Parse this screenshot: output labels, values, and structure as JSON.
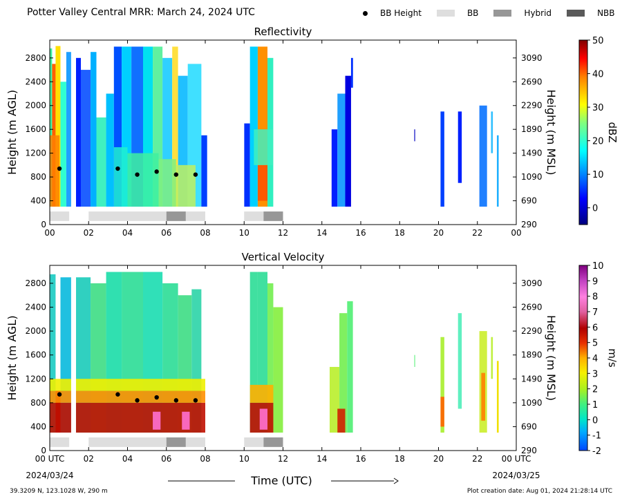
{
  "header": {
    "title": "Potter Valley Central MRR:  March 24, 2024 UTC"
  },
  "legend": [
    {
      "label": "BB Height",
      "kind": "dot",
      "color": "#000000"
    },
    {
      "label": "BB",
      "kind": "box",
      "color": "#dedede"
    },
    {
      "label": "Hybrid",
      "kind": "box",
      "color": "#979797"
    },
    {
      "label": "NBB",
      "kind": "box",
      "color": "#5a5a5a"
    }
  ],
  "footer": {
    "location": "39.3209 N, 123.1028 W, 290 m",
    "created": "Plot creation date: Aug 01, 2024 21:28:14 UTC"
  },
  "chart_data": [
    {
      "type": "heatmap",
      "title": "Reflectivity",
      "ylabel": "Height (m AGL)",
      "ylabel_right": "Height (m MSL)",
      "xlim": [
        0,
        24
      ],
      "ylim": [
        0,
        3100
      ],
      "x_ticks": [
        "00",
        "02",
        "04",
        "06",
        "08",
        "10",
        "12",
        "14",
        "16",
        "18",
        "20",
        "22",
        "00"
      ],
      "y_ticks": [
        0,
        400,
        800,
        1200,
        1600,
        2000,
        2400,
        2800
      ],
      "y_ticks_right": [
        290,
        690,
        1090,
        1490,
        1890,
        2290,
        2690,
        3090
      ],
      "colorbar": {
        "label": "dBZ",
        "min": -5,
        "max": 50,
        "ticks": [
          0,
          10,
          20,
          30,
          40,
          50
        ]
      },
      "bb_height_points": [
        [
          0.5,
          940
        ],
        [
          3.5,
          940
        ],
        [
          4.5,
          840
        ],
        [
          5.5,
          890
        ],
        [
          6.5,
          840
        ],
        [
          7.5,
          840
        ]
      ],
      "bb_type_segments": [
        {
          "start": 0.0,
          "end": 1.0,
          "type": "BB"
        },
        {
          "start": 2.0,
          "end": 6.0,
          "type": "BB"
        },
        {
          "start": 6.0,
          "end": 7.0,
          "type": "Hybrid"
        },
        {
          "start": 7.0,
          "end": 8.0,
          "type": "BB"
        },
        {
          "start": 10.0,
          "end": 11.0,
          "type": "BB"
        },
        {
          "start": 11.0,
          "end": 12.0,
          "type": "Hybrid"
        }
      ]
    },
    {
      "type": "heatmap",
      "title": "Vertical Velocity",
      "ylabel": "Height (m AGL)",
      "ylabel_right": "Height (m MSL)",
      "xlabel": "Time (UTC)",
      "xlim": [
        0,
        24
      ],
      "ylim": [
        0,
        3100
      ],
      "x_ticks": [
        "00 UTC",
        "02",
        "04",
        "06",
        "08",
        "10",
        "12",
        "14",
        "16",
        "18",
        "20",
        "22",
        "00 UTC"
      ],
      "x_date_left": "2024/03/24",
      "x_date_right": "2024/03/25",
      "y_ticks": [
        0,
        400,
        800,
        1200,
        1600,
        2000,
        2400,
        2800
      ],
      "y_ticks_right": [
        290,
        690,
        1090,
        1490,
        1890,
        2290,
        2690,
        3090
      ],
      "colorbar": {
        "label": "m/s",
        "min": -2,
        "max": 10,
        "ticks": [
          -2,
          -1,
          0,
          1,
          2,
          3,
          4,
          5,
          6,
          7,
          8,
          9,
          10
        ]
      },
      "bb_height_points": [
        [
          0.5,
          940
        ],
        [
          3.5,
          940
        ],
        [
          4.5,
          840
        ],
        [
          5.5,
          890
        ],
        [
          6.5,
          840
        ],
        [
          7.5,
          840
        ]
      ],
      "bb_type_segments": [
        {
          "start": 0.0,
          "end": 1.0,
          "type": "BB"
        },
        {
          "start": 2.0,
          "end": 6.0,
          "type": "BB"
        },
        {
          "start": 6.0,
          "end": 7.0,
          "type": "Hybrid"
        },
        {
          "start": 7.0,
          "end": 8.0,
          "type": "BB"
        },
        {
          "start": 10.0,
          "end": 11.0,
          "type": "BB"
        },
        {
          "start": 11.0,
          "end": 12.0,
          "type": "Hybrid"
        }
      ]
    }
  ]
}
